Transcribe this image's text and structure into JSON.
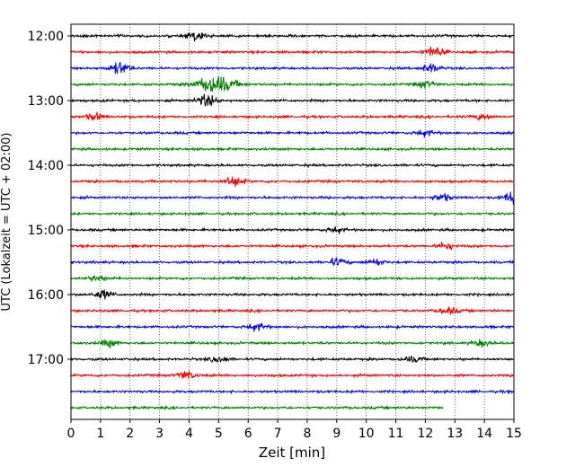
{
  "chart_data": {
    "type": "line",
    "xlabel": "Zeit  [min]",
    "ylabel": "UTC (Lokalzeit = UTC + 02:00)",
    "xlim": [
      0,
      15
    ],
    "x_ticks": [
      "0",
      "1",
      "2",
      "3",
      "4",
      "5",
      "6",
      "7",
      "8",
      "9",
      "10",
      "11",
      "12",
      "13",
      "14",
      "15"
    ],
    "y_ticks": [
      {
        "label": "12:00",
        "row": 0
      },
      {
        "label": "13:00",
        "row": 4
      },
      {
        "label": "14:00",
        "row": 8
      },
      {
        "label": "15:00",
        "row": 12
      },
      {
        "label": "16:00",
        "row": 16
      },
      {
        "label": "17:00",
        "row": 20
      }
    ],
    "grid": "vertical dotted at each minute",
    "trace_colors": [
      "#000000",
      "#ff0000",
      "#0000ff",
      "#008000"
    ],
    "rows": 24,
    "last_row_end_minute": 12.6,
    "events": [
      {
        "row": 0,
        "minute": 4.2,
        "amp": 1.2
      },
      {
        "row": 1,
        "minute": 12.3,
        "amp": 1.6
      },
      {
        "row": 2,
        "minute": 1.65,
        "amp": 1.8
      },
      {
        "row": 2,
        "minute": 12.2,
        "amp": 1.3
      },
      {
        "row": 3,
        "minute": 4.9,
        "amp": 2.6
      },
      {
        "row": 3,
        "minute": 12.0,
        "amp": 1.0
      },
      {
        "row": 4,
        "minute": 4.6,
        "amp": 1.8
      },
      {
        "row": 5,
        "minute": 0.8,
        "amp": 1.0
      },
      {
        "row": 5,
        "minute": 13.9,
        "amp": 0.9
      },
      {
        "row": 6,
        "minute": 12.0,
        "amp": 0.9
      },
      {
        "row": 9,
        "minute": 5.5,
        "amp": 1.6
      },
      {
        "row": 10,
        "minute": 15.0,
        "amp": 2.0
      },
      {
        "row": 10,
        "minute": 12.6,
        "amp": 1.0
      },
      {
        "row": 12,
        "minute": 9.0,
        "amp": 0.8
      },
      {
        "row": 13,
        "minute": 12.7,
        "amp": 1.0
      },
      {
        "row": 14,
        "minute": 9.0,
        "amp": 1.0
      },
      {
        "row": 14,
        "minute": 10.3,
        "amp": 1.0
      },
      {
        "row": 15,
        "minute": 0.9,
        "amp": 0.8
      },
      {
        "row": 16,
        "minute": 1.1,
        "amp": 1.3
      },
      {
        "row": 17,
        "minute": 12.8,
        "amp": 1.0
      },
      {
        "row": 18,
        "minute": 6.3,
        "amp": 1.1
      },
      {
        "row": 19,
        "minute": 1.3,
        "amp": 1.1
      },
      {
        "row": 19,
        "minute": 13.9,
        "amp": 0.9
      },
      {
        "row": 20,
        "minute": 5.0,
        "amp": 0.8
      },
      {
        "row": 20,
        "minute": 11.6,
        "amp": 0.8
      },
      {
        "row": 21,
        "minute": 3.9,
        "amp": 1.2
      }
    ]
  }
}
